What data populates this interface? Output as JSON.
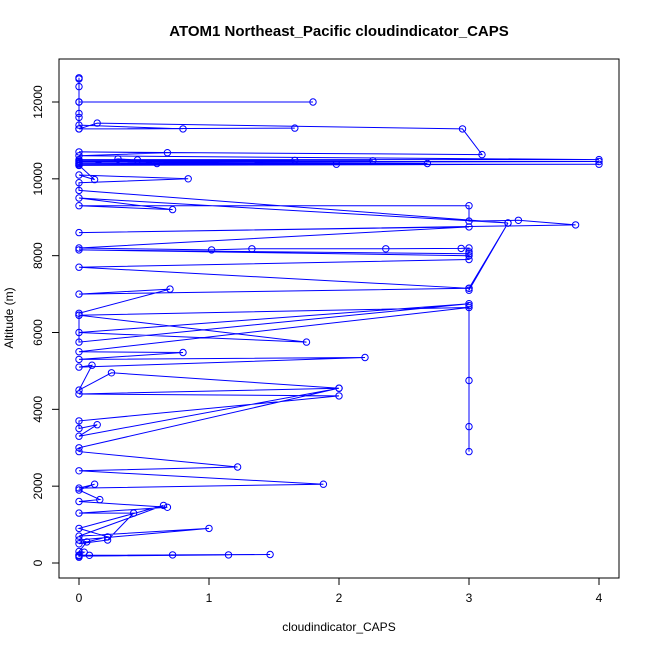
{
  "chart_data": {
    "type": "line",
    "title": "ATOM1 Northeast_Pacific cloudindicator_CAPS",
    "xlabel": "cloudindicator_CAPS",
    "ylabel": "Altitude (m)",
    "xlim": [
      0,
      4
    ],
    "ylim": [
      0,
      12600
    ],
    "x_ticks": [
      0,
      1,
      2,
      3,
      4
    ],
    "y_ticks": [
      0,
      2000,
      4000,
      6000,
      8000,
      10000,
      12000
    ],
    "grid": false,
    "series": [
      {
        "color": "#0000ff",
        "style": "line+points",
        "points": [
          [
            0,
            12630
          ],
          [
            0,
            12600
          ],
          [
            0,
            12400
          ],
          [
            0,
            12000
          ],
          [
            1.8,
            12000
          ],
          [
            0,
            12000
          ],
          [
            0,
            11700
          ],
          [
            0,
            11600
          ],
          [
            0,
            11400
          ],
          [
            0.8,
            11300
          ],
          [
            0,
            11300
          ],
          [
            1.66,
            11320
          ],
          [
            0,
            11300
          ],
          [
            0.14,
            11450
          ],
          [
            2.95,
            11300
          ],
          [
            3.1,
            10630
          ],
          [
            0,
            10700
          ],
          [
            0.68,
            10680
          ],
          [
            0,
            10600
          ],
          [
            4,
            10500
          ],
          [
            0,
            10500
          ],
          [
            1.66,
            10480
          ],
          [
            0,
            10470
          ],
          [
            2.26,
            10470
          ],
          [
            0,
            10450
          ],
          [
            4,
            10450
          ],
          [
            0,
            10420
          ],
          [
            2.68,
            10400
          ],
          [
            0,
            10400
          ],
          [
            1.98,
            10380
          ],
          [
            0,
            10380
          ],
          [
            4,
            10380
          ],
          [
            0,
            10350
          ],
          [
            0.3,
            10520
          ],
          [
            0.45,
            10490
          ],
          [
            0.6,
            10400
          ],
          [
            0,
            10350
          ],
          [
            0.12,
            9980
          ],
          [
            0,
            10100
          ],
          [
            0.84,
            10000
          ],
          [
            0,
            9900
          ],
          [
            0,
            9700
          ],
          [
            3.3,
            8850
          ],
          [
            0,
            9500
          ],
          [
            0.72,
            9200
          ],
          [
            0,
            9300
          ],
          [
            3,
            9300
          ],
          [
            3,
            8900
          ],
          [
            3.38,
            8920
          ],
          [
            3.82,
            8800
          ],
          [
            0,
            8600
          ],
          [
            3,
            8750
          ],
          [
            0,
            8200
          ],
          [
            1.02,
            8150
          ],
          [
            1.33,
            8180
          ],
          [
            2.36,
            8180
          ],
          [
            2.94,
            8190
          ],
          [
            3,
            8200
          ],
          [
            3,
            8100
          ],
          [
            3,
            8050
          ],
          [
            0,
            8150
          ],
          [
            3,
            8000
          ],
          [
            3,
            7900
          ],
          [
            0,
            7700
          ],
          [
            3,
            7150
          ],
          [
            3,
            7100
          ],
          [
            3.3,
            8850
          ],
          [
            3,
            7150
          ],
          [
            0,
            7000
          ],
          [
            0.7,
            7130
          ],
          [
            0,
            6500
          ],
          [
            0,
            6450
          ],
          [
            1.75,
            5750
          ],
          [
            0,
            6000
          ],
          [
            3,
            6750
          ],
          [
            0,
            5750
          ],
          [
            0,
            6450
          ],
          [
            3,
            6650
          ],
          [
            0,
            5500
          ],
          [
            0.8,
            5480
          ],
          [
            0,
            5300
          ],
          [
            2.2,
            5350
          ],
          [
            0,
            5100
          ],
          [
            0.1,
            5150
          ],
          [
            0,
            4500
          ],
          [
            0.25,
            4950
          ],
          [
            2,
            4550
          ],
          [
            0,
            4400
          ],
          [
            2,
            4350
          ],
          [
            0,
            3700
          ],
          [
            0,
            3500
          ],
          [
            0.14,
            3600
          ],
          [
            0,
            3300
          ],
          [
            2,
            4550
          ],
          [
            0,
            3000
          ],
          [
            0,
            2900
          ],
          [
            1.22,
            2500
          ],
          [
            0,
            2400
          ],
          [
            1.88,
            2050
          ],
          [
            0,
            1950
          ],
          [
            0.12,
            2050
          ],
          [
            0,
            1900
          ],
          [
            0.16,
            1650
          ],
          [
            0,
            1600
          ],
          [
            0.68,
            1450
          ],
          [
            0,
            1300
          ],
          [
            0.42,
            1300
          ],
          [
            0.22,
            600
          ],
          [
            0,
            500
          ],
          [
            0.22,
            680
          ],
          [
            0,
            900
          ],
          [
            0.65,
            1500
          ],
          [
            0,
            700
          ],
          [
            1,
            900
          ],
          [
            0,
            600
          ],
          [
            0.06,
            550
          ],
          [
            0,
            300
          ],
          [
            0.04,
            280
          ],
          [
            0,
            200
          ],
          [
            0.08,
            200
          ],
          [
            1.15,
            210
          ],
          [
            0,
            180
          ],
          [
            0.72,
            210
          ],
          [
            1.47,
            220
          ],
          [
            0,
            200
          ],
          [
            0,
            150
          ]
        ]
      },
      {
        "color": "#0000ff",
        "style": "line+points",
        "points": [
          [
            3,
            6700
          ],
          [
            3,
            4750
          ],
          [
            3,
            3550
          ],
          [
            3,
            2900
          ]
        ]
      }
    ]
  }
}
